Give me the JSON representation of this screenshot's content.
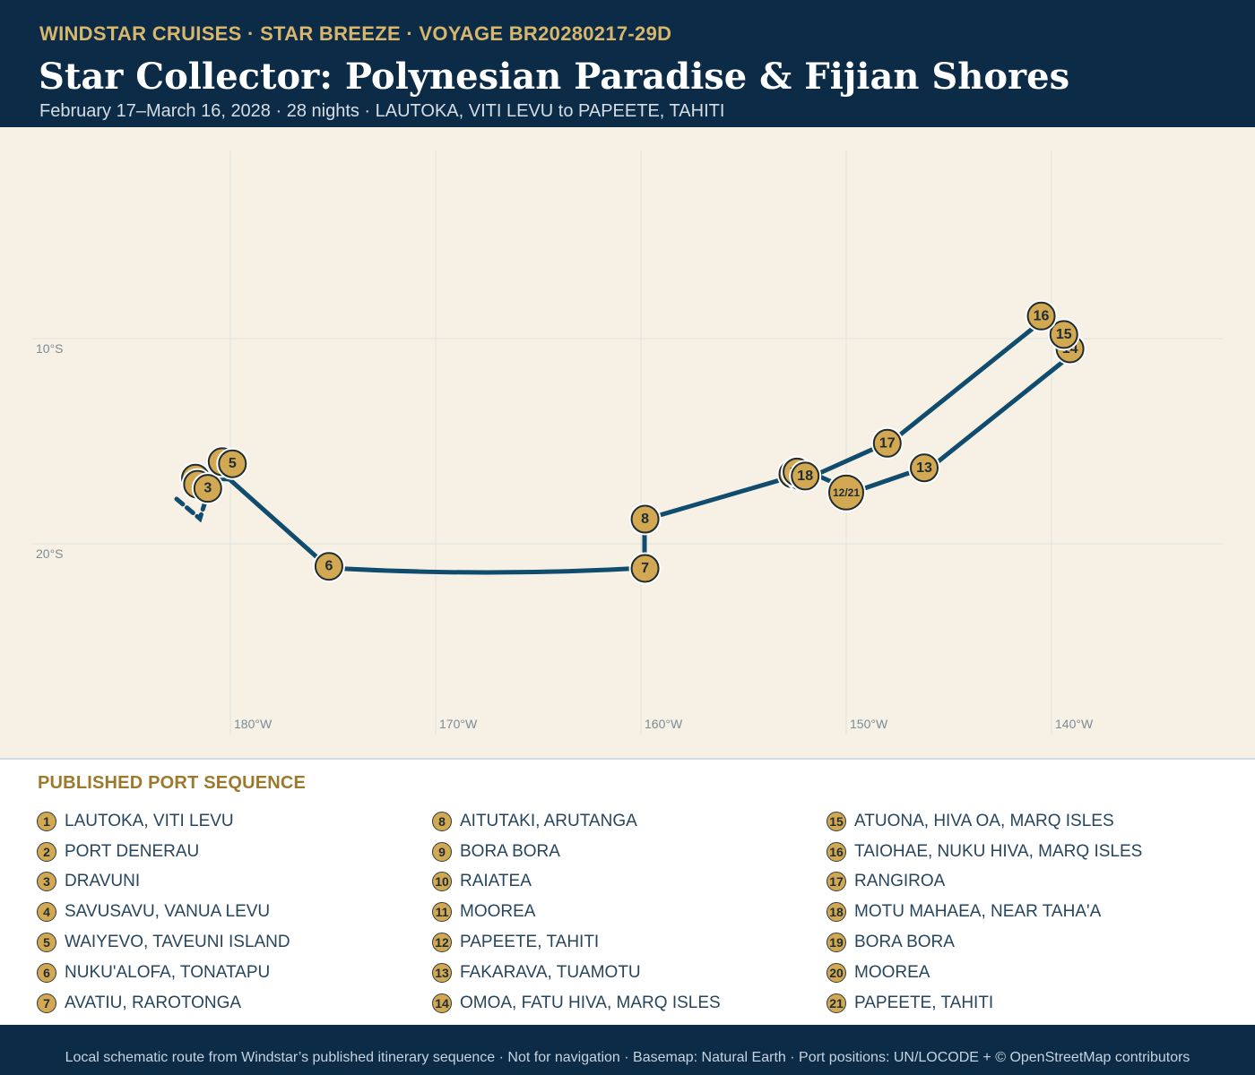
{
  "header": {
    "eyebrow": "WINDSTAR CRUISES · STAR BREEZE · VOYAGE BR20280217-29D",
    "title": "Star Collector: Polynesian Paradise & Fijian Shores",
    "subtitle": "February 17–March 16, 2028 · 28 nights · LAUTOKA, VITI LEVU to PAPEETE, TAHITI"
  },
  "map": {
    "longitude_ticks": [
      "180°W",
      "170°W",
      "160°W",
      "150°W",
      "140°W"
    ],
    "latitude_ticks": [
      "10°S",
      "20°S"
    ],
    "route_color": "#0f4c6e",
    "marker_color": "#d3a853",
    "markers": [
      {
        "label": "1",
        "lon": 178.3,
        "lat": -16.8
      },
      {
        "label": "2",
        "lon": 178.4,
        "lat": -17.1
      },
      {
        "label": "3",
        "lon": 178.9,
        "lat": -17.3
      },
      {
        "label": "4",
        "lon": 179.6,
        "lat": -16.0
      },
      {
        "label": "5",
        "lon": -179.9,
        "lat": -16.1
      },
      {
        "label": "6",
        "lon": -175.2,
        "lat": -21.1
      },
      {
        "label": "7",
        "lon": -159.8,
        "lat": -21.2
      },
      {
        "label": "8",
        "lon": -159.8,
        "lat": -18.8
      },
      {
        "label": "9",
        "lon": -152.6,
        "lat": -16.6
      },
      {
        "label": "10",
        "lon": -152.2,
        "lat": -16.7
      },
      {
        "label": "11",
        "lon": -152.4,
        "lat": -16.5
      },
      {
        "label": "12/21",
        "lon": -150.0,
        "lat": -17.5
      },
      {
        "label": "13",
        "lon": -146.2,
        "lat": -16.3
      },
      {
        "label": "14",
        "lon": -139.1,
        "lat": -10.5
      },
      {
        "label": "15",
        "lon": -139.4,
        "lat": -9.8
      },
      {
        "label": "16",
        "lon": -140.5,
        "lat": -8.9
      },
      {
        "label": "17",
        "lon": -148.0,
        "lat": -15.1
      },
      {
        "label": "18",
        "lon": -152.0,
        "lat": -16.7
      }
    ]
  },
  "legend": {
    "title": "PUBLISHED PORT SEQUENCE",
    "columns": [
      [
        {
          "num": "1",
          "name": "LAUTOKA, VITI LEVU"
        },
        {
          "num": "2",
          "name": "PORT DENERAU"
        },
        {
          "num": "3",
          "name": "DRAVUNI"
        },
        {
          "num": "4",
          "name": "SAVUSAVU, VANUA LEVU"
        },
        {
          "num": "5",
          "name": "WAIYEVO, TAVEUNI ISLAND"
        },
        {
          "num": "6",
          "name": "NUKU'ALOFA, TONATAPU"
        },
        {
          "num": "7",
          "name": "AVATIU, RAROTONGA"
        }
      ],
      [
        {
          "num": "8",
          "name": "AITUTAKI, ARUTANGA"
        },
        {
          "num": "9",
          "name": "BORA BORA"
        },
        {
          "num": "10",
          "name": "RAIATEA"
        },
        {
          "num": "11",
          "name": "MOOREA"
        },
        {
          "num": "12",
          "name": "PAPEETE, TAHITI"
        },
        {
          "num": "13",
          "name": "FAKARAVA, TUAMOTU"
        },
        {
          "num": "14",
          "name": "OMOA, FATU HIVA, MARQ ISLES"
        }
      ],
      [
        {
          "num": "15",
          "name": "ATUONA, HIVA OA, MARQ ISLES"
        },
        {
          "num": "16",
          "name": "TAIOHAE, NUKU HIVA, MARQ ISLES"
        },
        {
          "num": "17",
          "name": "RANGIROA"
        },
        {
          "num": "18",
          "name": "MOTU MAHAEA, NEAR TAHA'A"
        },
        {
          "num": "19",
          "name": "BORA BORA"
        },
        {
          "num": "20",
          "name": "MOOREA"
        },
        {
          "num": "21",
          "name": "PAPEETE, TAHITI"
        }
      ]
    ]
  },
  "footer": {
    "text": "Local schematic route from Windstar’s published itinerary sequence · Not for navigation · Basemap: Natural Earth · Port positions: UN/LOCODE + © OpenStreetMap contributors"
  }
}
